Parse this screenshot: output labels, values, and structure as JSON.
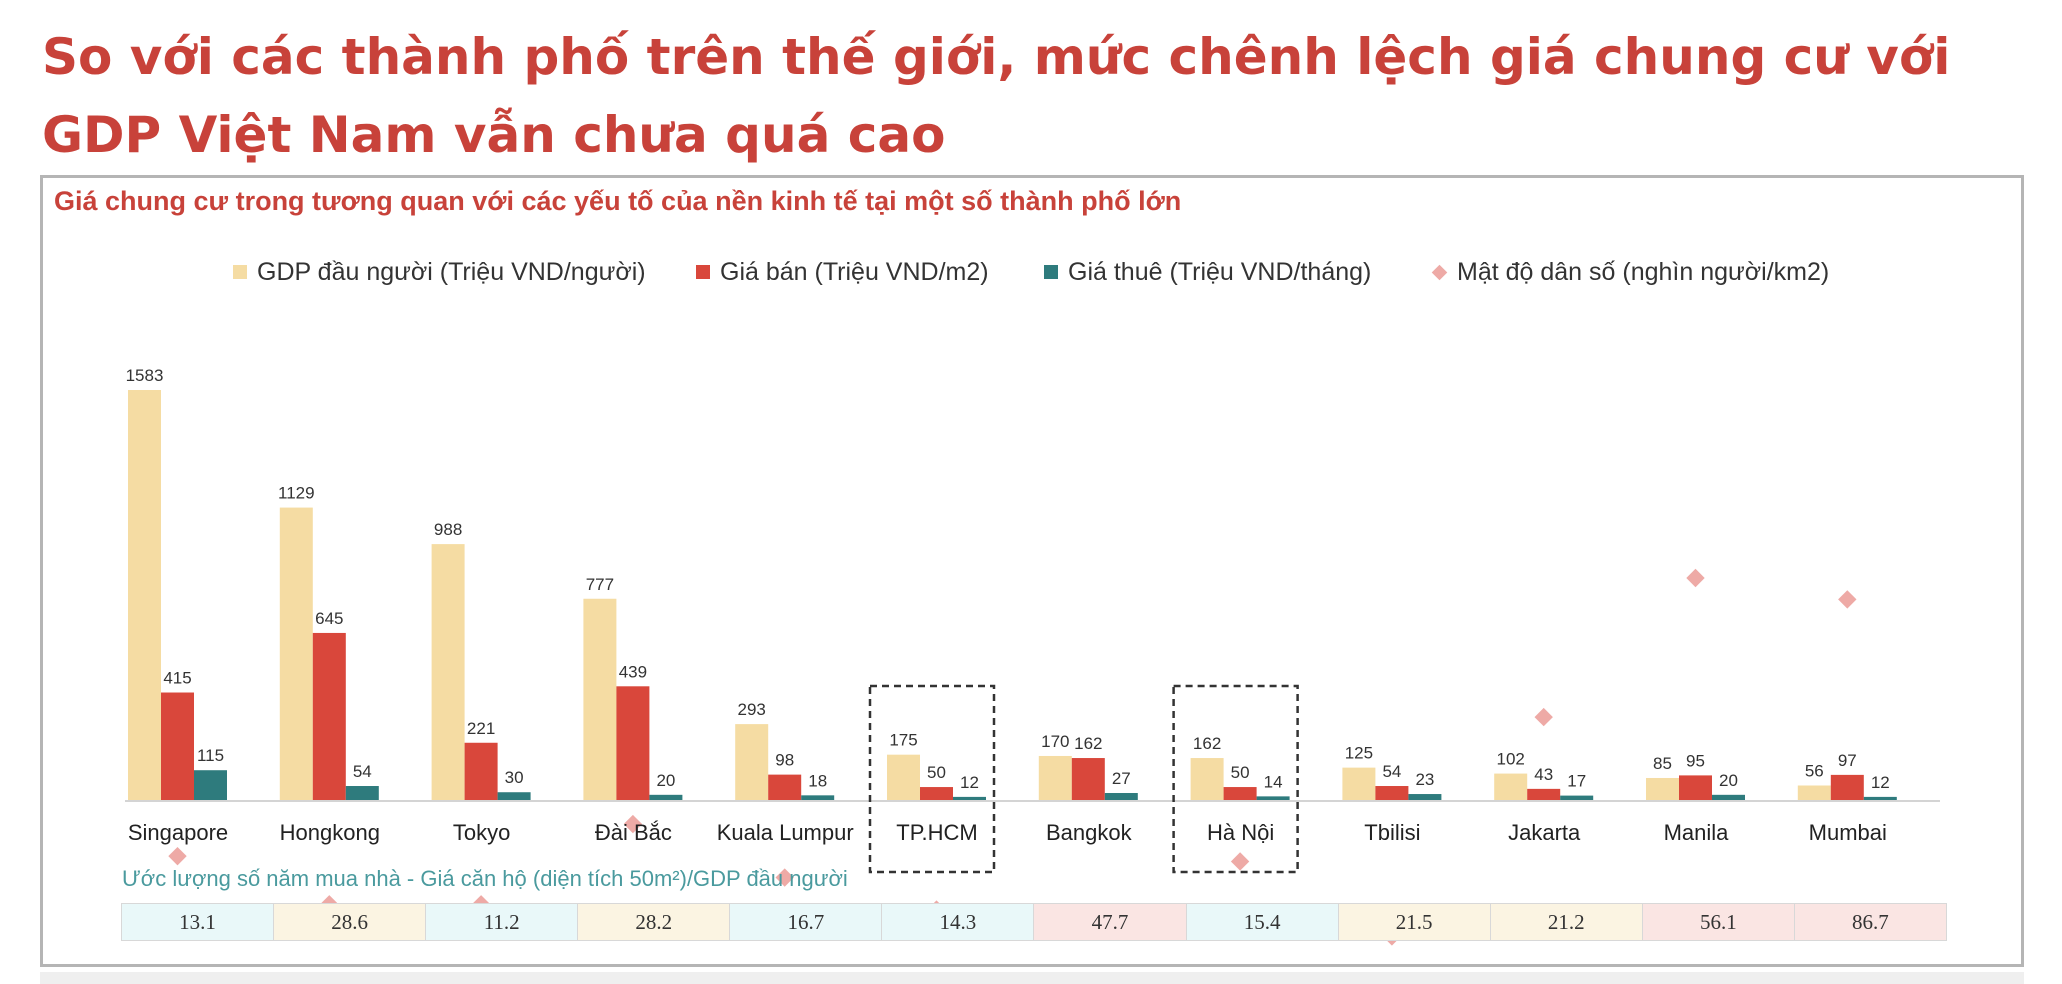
{
  "page": {
    "title": "So với các thành phố trên thế giới, mức chênh lệch giá chung cư với GDP Việt Nam vẫn chưa quá cao"
  },
  "chart_data": {
    "type": "bar",
    "title": "Giá chung cư trong tương quan với các yếu tố của nền kinh tế tại một số thành phố lớn",
    "legend_position": "top",
    "grid": false,
    "categories": [
      "Singapore",
      "Hongkong",
      "Tokyo",
      "Đài Bắc",
      "Kuala Lumpur",
      "TP.HCM",
      "Bangkok",
      "Hà Nội",
      "Tbilisi",
      "Jakarta",
      "Manila",
      "Mumbai"
    ],
    "highlighted_categories": [
      "TP.HCM",
      "Hà Nội"
    ],
    "ylim": [
      0,
      1700
    ],
    "series": [
      {
        "name": "GDP đầu người (Triệu VND/người)",
        "kind": "bar",
        "color": "#f5dca3",
        "values": [
          1583,
          1129,
          988,
          777,
          293,
          175,
          170,
          162,
          125,
          102,
          85,
          56
        ]
      },
      {
        "name": "Giá bán (Triệu VND/m2)",
        "kind": "bar",
        "color": "#d9473b",
        "values": [
          415,
          645,
          221,
          439,
          98,
          50,
          162,
          50,
          54,
          43,
          95,
          97
        ]
      },
      {
        "name": "Giá thuê (Triệu VND/tháng)",
        "kind": "bar",
        "color": "#2e7b7d",
        "values": [
          115,
          54,
          30,
          20,
          18,
          12,
          27,
          14,
          23,
          17,
          20,
          12
        ]
      },
      {
        "name": "Mật độ dân số (nghìn người/km2)",
        "kind": "marker",
        "color": "#eeaaa6",
        "values": [
          340,
          250,
          250,
          400,
          300,
          240,
          60,
          330,
          190,
          600,
          860,
          820
        ]
      }
    ],
    "footnote": "Ước lượng số năm mua nhà - Giá căn hộ (diện tích 50m²)/GDP đầu người",
    "years_to_buy": [
      "13.1",
      "28.6",
      "11.2",
      "28.2",
      "16.7",
      "14.3",
      "47.7",
      "15.4",
      "21.5",
      "21.2",
      "56.1",
      "86.7"
    ],
    "years_colors": [
      "#e9f8f9",
      "#fbf4e2",
      "#e9f8f9",
      "#fbf4e2",
      "#e9f8f9",
      "#e9f8f9",
      "#fae5e3",
      "#e9f8f9",
      "#fbf4e2",
      "#fbf4e2",
      "#fae5e3",
      "#fae5e3"
    ]
  }
}
